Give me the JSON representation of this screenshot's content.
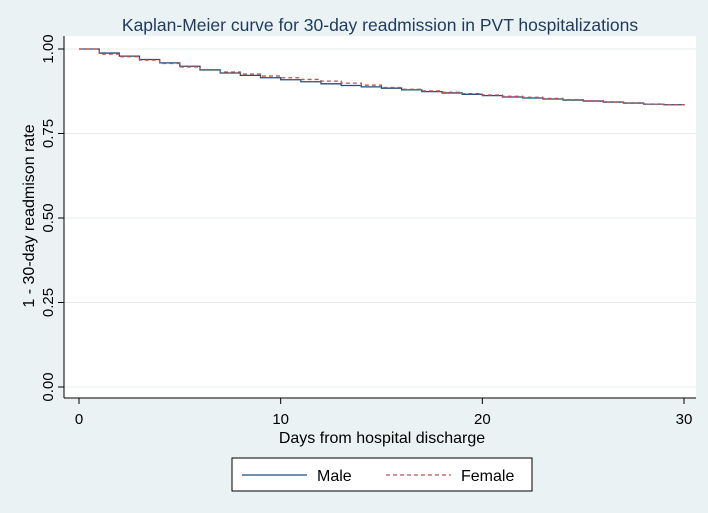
{
  "chart_data": {
    "type": "line",
    "step": true,
    "title": "Kaplan-Meier curve for 30-day readmission in PVT hospitalizations",
    "xlabel": "Days from hospital discharge",
    "ylabel": "1 - 30-day readmison rate",
    "xlim": [
      0,
      30
    ],
    "ylim": [
      0,
      1
    ],
    "xticks": [
      0,
      10,
      20,
      30
    ],
    "yticks": [
      "0.00",
      "0.25",
      "0.50",
      "0.75",
      "1.00"
    ],
    "grid": true,
    "legend": {
      "position": "bottom"
    },
    "x": [
      0,
      1,
      2,
      3,
      4,
      5,
      6,
      7,
      8,
      9,
      10,
      11,
      12,
      13,
      14,
      15,
      16,
      17,
      18,
      19,
      20,
      21,
      22,
      23,
      24,
      25,
      26,
      27,
      28,
      29,
      30
    ],
    "series": [
      {
        "name": "Male",
        "color": "#1f4e79",
        "dash": "solid",
        "values": [
          1.0,
          0.988,
          0.979,
          0.969,
          0.959,
          0.949,
          0.938,
          0.929,
          0.922,
          0.915,
          0.909,
          0.903,
          0.897,
          0.892,
          0.888,
          0.884,
          0.879,
          0.874,
          0.87,
          0.866,
          0.862,
          0.858,
          0.855,
          0.852,
          0.849,
          0.846,
          0.843,
          0.84,
          0.837,
          0.835,
          0.833
        ]
      },
      {
        "name": "Female",
        "color": "#c0504d",
        "dash": "dashed",
        "values": [
          1.0,
          0.985,
          0.977,
          0.967,
          0.957,
          0.947,
          0.939,
          0.932,
          0.926,
          0.92,
          0.915,
          0.91,
          0.905,
          0.899,
          0.893,
          0.886,
          0.881,
          0.876,
          0.872,
          0.868,
          0.864,
          0.86,
          0.857,
          0.854,
          0.85,
          0.847,
          0.843,
          0.84,
          0.837,
          0.835,
          0.834
        ]
      }
    ]
  }
}
